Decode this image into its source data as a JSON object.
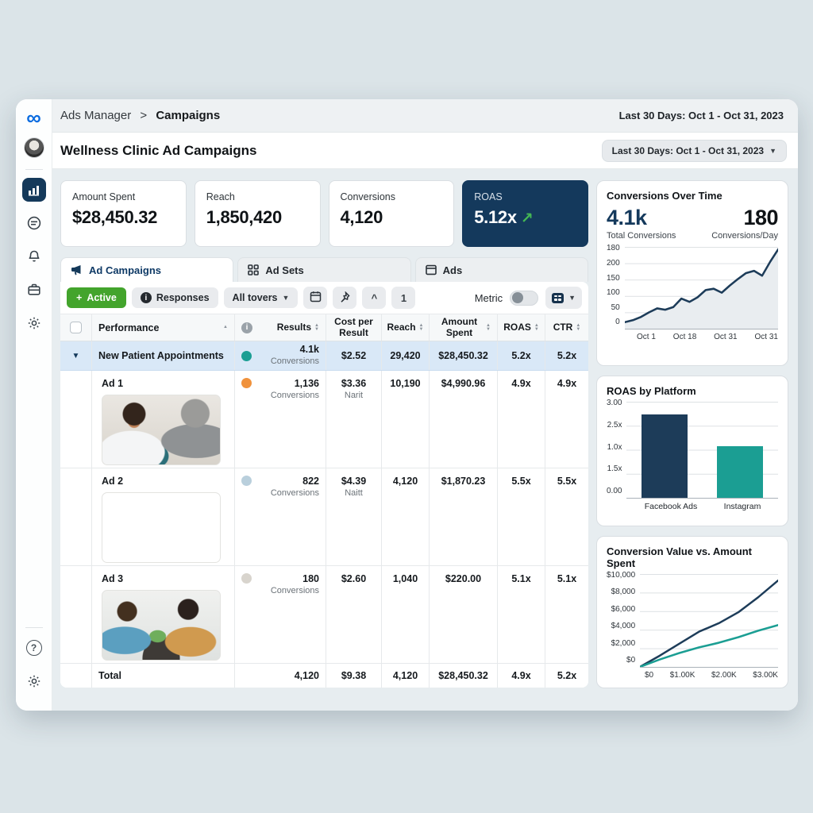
{
  "app": {
    "breadcrumb_root": "Ads Manager",
    "breadcrumb_sep": ">",
    "breadcrumb_current": "Campaigns",
    "top_date_label": "Last 30 Days: Oct 1 - Oct 31, 2023",
    "page_title": "Wellness Clinic Ad Campaigns",
    "date_dropdown_label": "Last 30 Days: Oct 1 - Oct 31, 2023",
    "help_glyph": "?"
  },
  "colors": {
    "accent_navy": "#14395c",
    "accent_teal": "#1b9e93",
    "green_button": "#43a42c",
    "trend_green": "#45b854",
    "row_highlight": "#d9e8f7"
  },
  "kpis": [
    {
      "label": "Amount Spent",
      "value": "$28,450.32"
    },
    {
      "label": "Reach",
      "value": "1,850,420"
    },
    {
      "label": "Conversions",
      "value": "4,120"
    },
    {
      "label": "ROAS",
      "value": "5.12x",
      "trend": "↗"
    }
  ],
  "tabs": [
    {
      "label": "Ad Campaigns"
    },
    {
      "label": "Ad Sets"
    },
    {
      "label": "Ads"
    }
  ],
  "toolbar": {
    "active_button": "Active",
    "plus_glyph": "+",
    "responses_button": "Responses",
    "info_glyph": "i",
    "filters_dropdown": "All tovers",
    "collapse_button": "^",
    "sort_button": "1",
    "metric_label": "Metric"
  },
  "table": {
    "columns": {
      "performance": "Performance",
      "results": "Results",
      "cost_per_result": "Cost per Result",
      "reach": "Reach",
      "amount_spent": "Amount Spent",
      "roas": "ROAS",
      "ctr": "CTR"
    },
    "campaign_row": {
      "name": "New Patient Appointments",
      "dot_color": "#1b9e93",
      "results": "4.1k",
      "results_sub": "Conversions",
      "cost": "$2.52",
      "reach": "29,420",
      "spent": "$28,450.32",
      "roas": "5.2x",
      "ctr": "5.2x"
    },
    "ad_rows": [
      {
        "name": "Ad 1",
        "dot_color": "#f0923c",
        "results": "1,136",
        "results_sub": "Conversions",
        "cost": "$3.36",
        "cost_sub": "Narit",
        "reach": "10,190",
        "spent": "$4,990.96",
        "roas": "4.9x",
        "ctr": "4.9x"
      },
      {
        "name": "Ad 2",
        "dot_color": "#b9cfdc",
        "results": "822",
        "results_sub": "Conversions",
        "cost": "$4.39",
        "cost_sub": "Naitt",
        "reach": "4,120",
        "spent": "$1,870.23",
        "roas": "5.5x",
        "ctr": "5.5x"
      },
      {
        "name": "Ad 3",
        "dot_color": "#d8d4cd",
        "results": "180",
        "results_sub": "Conversions",
        "cost": "$2.60",
        "cost_sub": "",
        "reach": "1,040",
        "spent": "$220.00",
        "roas": "5.1x",
        "ctr": "5.1x"
      }
    ],
    "total_row": {
      "label": "Total",
      "results": "4,120",
      "cost": "$9.38",
      "reach": "4,120",
      "spent": "$28,450.32",
      "roas": "4.9x",
      "ctr": "5.2x"
    }
  },
  "chart_data": [
    {
      "type": "line",
      "title": "Conversions Over Time",
      "stats": [
        {
          "value": "4.1k",
          "label": "Total Conversions"
        },
        {
          "value": "180",
          "label": "Conversions/Day"
        }
      ],
      "y_ticks": [
        "180",
        "200",
        "150",
        "100",
        "50",
        "0"
      ],
      "x_ticks": [
        "Oct 1",
        "Oct 18",
        "Oct 31",
        "Oct 31"
      ],
      "ylim": [
        0,
        250
      ],
      "grid": true,
      "series": [
        {
          "name": "Conversions",
          "color": "#1d3c59",
          "fill": "#e9edf0",
          "values": [
            20,
            26,
            36,
            50,
            62,
            58,
            66,
            92,
            82,
            96,
            118,
            122,
            110,
            132,
            152,
            170,
            177,
            162,
            205,
            243
          ]
        }
      ]
    },
    {
      "type": "bar",
      "title": "ROAS by Platform",
      "categories": [
        "Facebook Ads",
        "Instagram"
      ],
      "values": [
        2.6,
        1.6
      ],
      "colors": [
        "#1d3c59",
        "#1b9e93"
      ],
      "y_ticks": [
        "3.00",
        "2.5x",
        "1.0x",
        "1.5x",
        "0.00"
      ],
      "ylim": [
        0,
        3
      ],
      "grid": true
    },
    {
      "type": "line",
      "title": "Conversion Value vs. Amount Spent",
      "y_ticks": [
        "$10,000",
        "$8,000",
        "$6,000",
        "$4,000",
        "$2,000",
        "$0"
      ],
      "x_ticks": [
        "$0",
        "$1.00K",
        "$2.00K",
        "$3.00K"
      ],
      "ylim": [
        0,
        10000
      ],
      "grid": true,
      "series": [
        {
          "name": "Conversion Value",
          "color": "#1d3c59",
          "values": [
            0,
            1200,
            2500,
            3800,
            4700,
            5900,
            7500,
            9300
          ]
        },
        {
          "name": "Amount Spent",
          "color": "#1b9e93",
          "values": [
            0,
            800,
            1500,
            2100,
            2600,
            3200,
            3900,
            4500
          ]
        }
      ]
    }
  ]
}
